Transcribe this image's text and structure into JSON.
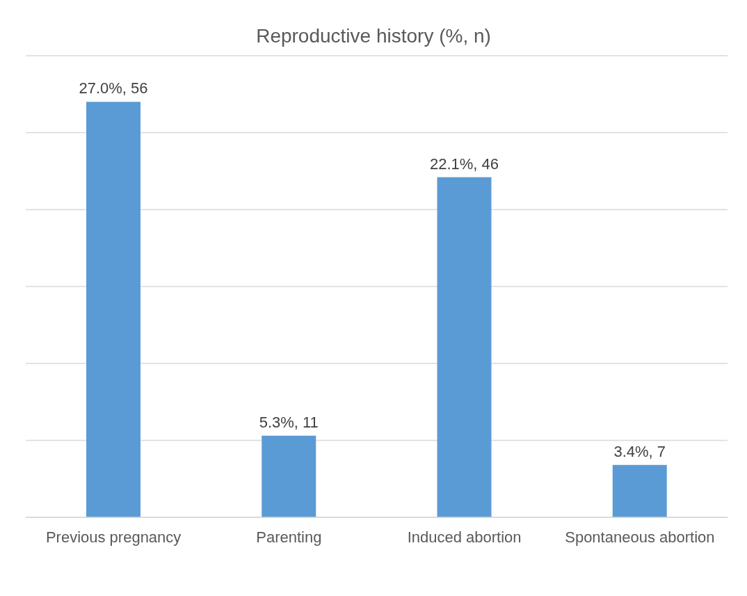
{
  "chart_data": {
    "type": "bar",
    "title": "Reproductive history (%, n)",
    "categories": [
      "Previous pregnancy",
      "Parenting",
      "Induced abortion",
      "Spontaneous abortion"
    ],
    "values": [
      27.0,
      5.3,
      22.1,
      3.4
    ],
    "value_labels": [
      "27.0%, 56",
      "5.3%, 11",
      "22.1%, 46",
      "3.4%, 7"
    ],
    "color": "#5b9bd5",
    "ylim": [
      0,
      30
    ],
    "yticks": [
      0,
      {
        "value": 5,
        "label": null
      },
      {
        "value": 10,
        "label": null
      },
      {
        "value": 15,
        "label": null
      },
      {
        "value": 20,
        "label": null
      },
      {
        "value": 25,
        "label": null
      },
      {
        "value": 30,
        "label": null
      }
    ],
    "tick_labels": "x",
    "grid": "y",
    "legend": false
  }
}
